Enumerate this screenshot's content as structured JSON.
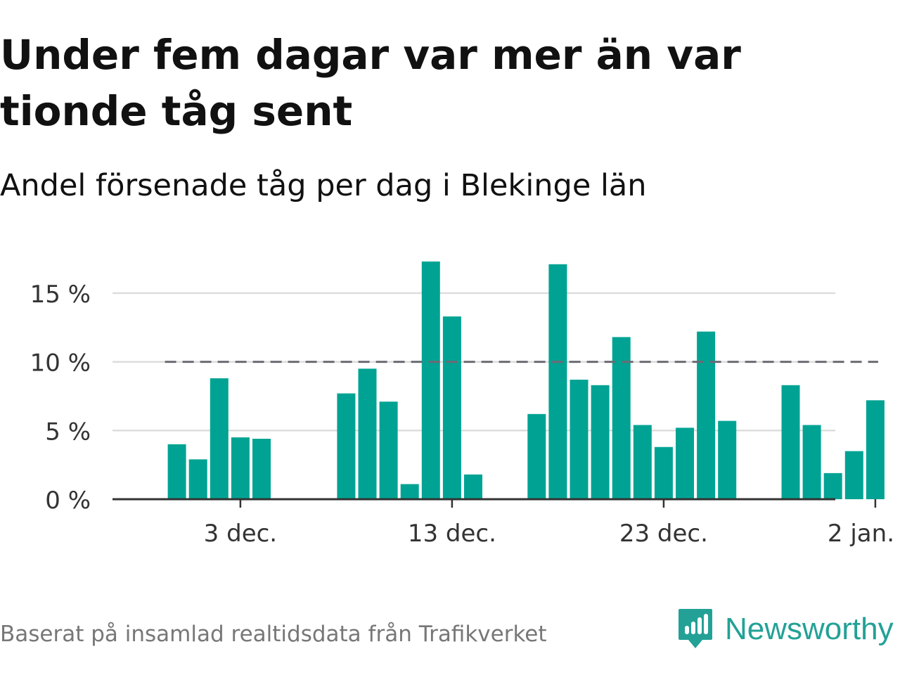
{
  "title": "Under fem dagar var mer än var tionde tåg sent",
  "subtitle": "Andel försenade tåg per dag i Blekinge län",
  "source": "Baserat på insamlad realtidsdata från Trafikverket",
  "brand": {
    "name": "Newsworthy",
    "icon": "newsworthy-logo-icon",
    "color": "#23a196"
  },
  "colors": {
    "bar": "#00a393",
    "reference_line": "#6b6b73",
    "gridline": "#dddddd",
    "axis": "#333333"
  },
  "chart_data": {
    "type": "bar",
    "x_start_date": "2019-11-29",
    "x": [
      "29 nov",
      "30 nov",
      "1 dec",
      "2 dec",
      "3 dec",
      "4 dec",
      "5 dec",
      "6 dec",
      "7 dec",
      "8 dec",
      "9 dec",
      "10 dec",
      "11 dec",
      "12 dec",
      "13 dec",
      "14 dec",
      "15 dec",
      "16 dec",
      "17 dec",
      "18 dec",
      "19 dec",
      "20 dec",
      "21 dec",
      "22 dec",
      "23 dec",
      "24 dec",
      "25 dec",
      "26 dec",
      "27 dec",
      "28 dec",
      "29 dec",
      "30 dec",
      "31 dec",
      "1 jan",
      "2 jan"
    ],
    "values": [
      null,
      4.0,
      2.9,
      8.8,
      4.5,
      4.4,
      null,
      null,
      null,
      7.7,
      9.5,
      7.1,
      1.1,
      17.3,
      13.3,
      1.8,
      null,
      null,
      6.2,
      17.1,
      8.7,
      8.3,
      11.8,
      5.4,
      3.8,
      5.2,
      12.2,
      5.7,
      null,
      null,
      8.3,
      5.4,
      1.9,
      3.5,
      7.2
    ],
    "reference_line": {
      "value": 10,
      "from": "30 nov",
      "to": "2 jan"
    },
    "ylim": [
      0,
      17.5
    ],
    "yticks": [
      0,
      5,
      10,
      15
    ],
    "ytick_labels": [
      "0 %",
      "5 %",
      "10 %",
      "15 %"
    ],
    "xticks": [
      "3 dec",
      "13 dec",
      "23 dec",
      "2 jan"
    ],
    "xtick_labels": [
      "3 dec.",
      "13 dec.",
      "23 dec.",
      "2 jan."
    ],
    "grid": true,
    "legend": "none"
  }
}
